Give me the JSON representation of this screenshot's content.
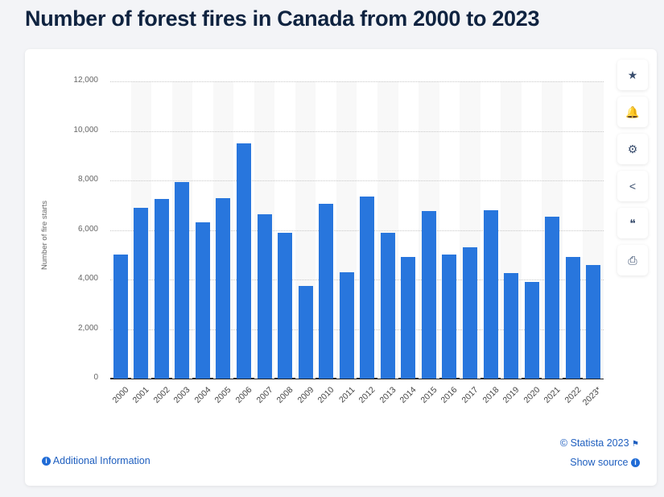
{
  "header": {
    "title": "Number of forest fires in Canada from 2000 to 2023"
  },
  "sidebar": {
    "buttons": [
      {
        "name": "favorite",
        "icon": "star-icon",
        "glyph": "★"
      },
      {
        "name": "notification",
        "icon": "bell-icon",
        "glyph": "🔔"
      },
      {
        "name": "settings",
        "icon": "gear-icon",
        "glyph": "⚙"
      },
      {
        "name": "share",
        "icon": "share-icon",
        "glyph": "<"
      },
      {
        "name": "cite",
        "icon": "quote-icon",
        "glyph": "❝"
      },
      {
        "name": "print",
        "icon": "print-icon",
        "glyph": "⎙"
      }
    ]
  },
  "footer": {
    "additional_info": "Additional Information",
    "copyright": "© Statista 2023",
    "show_source": "Show source"
  },
  "colors": {
    "bar": "#2876dd",
    "title": "#0f2340",
    "link": "#1f5fbf"
  },
  "chart_data": {
    "type": "bar",
    "title": "Number of forest fires in Canada from 2000 to 2023",
    "xlabel": "",
    "ylabel": "Number of fire starts",
    "ylim": [
      0,
      12000
    ],
    "yticks": [
      "0",
      "2,000",
      "4,000",
      "6,000",
      "8,000",
      "10,000",
      "12,000"
    ],
    "grid": true,
    "categories": [
      "2000",
      "2001",
      "2002",
      "2003",
      "2004",
      "2005",
      "2006",
      "2007",
      "2008",
      "2009",
      "2010",
      "2011",
      "2012",
      "2013",
      "2014",
      "2015",
      "2016",
      "2017",
      "2018",
      "2019",
      "2020",
      "2021",
      "2022",
      "2023*"
    ],
    "values": [
      5000,
      6900,
      7250,
      7950,
      6300,
      7300,
      9500,
      6650,
      5900,
      3750,
      7050,
      4300,
      7350,
      5900,
      4900,
      6750,
      5000,
      5300,
      6800,
      4250,
      3900,
      6550,
      4900,
      4600
    ]
  }
}
